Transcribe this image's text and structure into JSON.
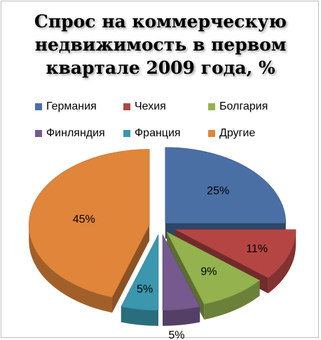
{
  "chart_data": {
    "type": "pie",
    "title": "Спрос на коммерческую недвижимость в первом квартале 2009 года, %",
    "title_lines": [
      "Спрос на коммерческую",
      "недвижимость в первом",
      "квартале 2009 года, %"
    ],
    "categories": [
      "Германия",
      "Чехия",
      "Болгария",
      "Финляндия",
      "Франция",
      "Другие"
    ],
    "values": [
      25,
      11,
      9,
      5,
      5,
      45
    ],
    "labels": [
      "25%",
      "11%",
      "9%",
      "5%",
      "5%",
      "45%"
    ],
    "colors": [
      "#4a6fa5",
      "#b54543",
      "#94b24e",
      "#75598f",
      "#3a97ad",
      "#e0853a"
    ],
    "style": "3d-exploded",
    "legend_position": "top"
  }
}
